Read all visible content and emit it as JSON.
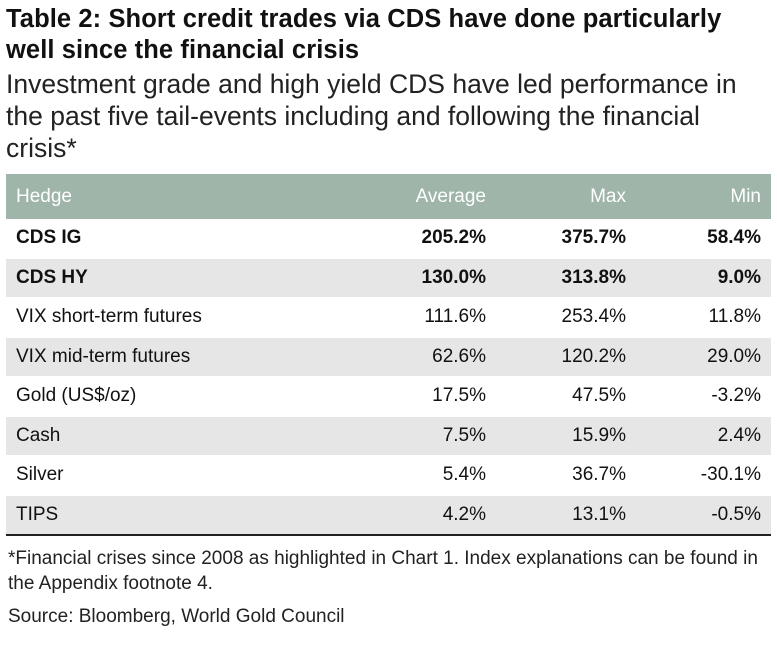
{
  "title": "Table 2: Short credit trades via CDS have done particularly well since the financial crisis",
  "subtitle": "Investment grade and high yield CDS have led performance in the past five tail-events including and following the financial crisis*",
  "table": {
    "headers": [
      "Hedge",
      "Average",
      "Max",
      "Min"
    ],
    "rows": [
      {
        "hedge": "CDS IG",
        "average": "205.2%",
        "max": "375.7%",
        "min": "58.4%"
      },
      {
        "hedge": "CDS HY",
        "average": "130.0%",
        "max": "313.8%",
        "min": "9.0%"
      },
      {
        "hedge": "VIX short-term futures",
        "average": "111.6%",
        "max": "253.4%",
        "min": "11.8%"
      },
      {
        "hedge": "VIX mid-term futures",
        "average": "62.6%",
        "max": "120.2%",
        "min": "29.0%"
      },
      {
        "hedge": "Gold (US$/oz)",
        "average": "17.5%",
        "max": "47.5%",
        "min": "-3.2%"
      },
      {
        "hedge": "Cash",
        "average": "7.5%",
        "max": "15.9%",
        "min": "2.4%"
      },
      {
        "hedge": "Silver",
        "average": "5.4%",
        "max": "36.7%",
        "min": "-30.1%"
      },
      {
        "hedge": "TIPS",
        "average": "4.2%",
        "max": "13.1%",
        "min": "-0.5%"
      }
    ]
  },
  "footnote": "*Financial crises since 2008 as highlighted in Chart 1. Index explanations can be found in the Appendix footnote 4.",
  "source": "Source: Bloomberg, World Gold Council",
  "colors": {
    "header_bg": "#9fb5aa",
    "alt_row_bg": "#e6e6e6",
    "text": "#111111"
  }
}
